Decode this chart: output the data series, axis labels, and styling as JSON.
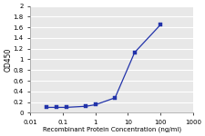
{
  "x": [
    0.031,
    0.063,
    0.125,
    0.5,
    1.0,
    4.0,
    16.0,
    100.0
  ],
  "y": [
    0.1,
    0.1,
    0.1,
    0.12,
    0.15,
    0.28,
    1.13,
    1.65
  ],
  "line_color": "#2233aa",
  "marker": "s",
  "marker_size": 2.5,
  "marker_facecolor": "#2233aa",
  "xlabel": "Recombinant Protein Concentration (ng/ml)",
  "ylabel": "OD450",
  "xlim": [
    0.01,
    1000
  ],
  "ylim": [
    0,
    2
  ],
  "yticks": [
    0,
    0.2,
    0.4,
    0.6,
    0.8,
    1.0,
    1.2,
    1.4,
    1.6,
    1.8,
    2.0
  ],
  "xticks": [
    0.01,
    0.1,
    1,
    10,
    100,
    1000
  ],
  "xtick_labels": [
    "0.01",
    "0.1",
    "1",
    "10",
    "100",
    "1000"
  ],
  "background_color": "#e8e8e8",
  "grid_color": "#ffffff",
  "label_fontsize": 5.0,
  "tick_fontsize": 5.0,
  "ylabel_fontsize": 5.5
}
